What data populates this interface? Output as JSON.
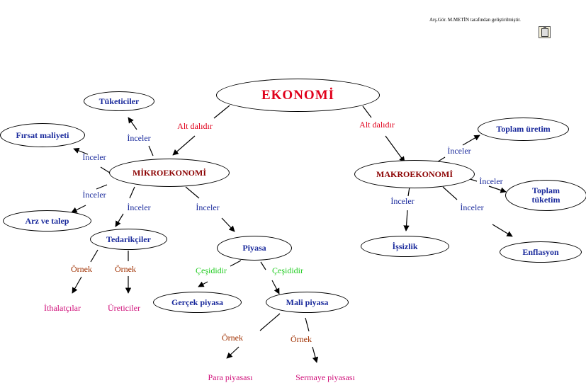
{
  "credit": "Arş.Gör. M.METİN tarafından geliştirilmiştir.",
  "colors": {
    "node_text": "#1a2a9c",
    "root_text": "#e0001b",
    "main_text": "#8b0000",
    "alt_dalidir": "#e0001b",
    "inceler": "#1a2a9c",
    "cesididir": "#22cc22",
    "ornek": "#a03000",
    "leaf": "#d0107a"
  },
  "nodes": {
    "ekonomi": "EKONOMİ",
    "mikro": "MİKROEKONOMİ",
    "makro": "MAKROEKONOMİ",
    "tuketiciler": "Tüketiciler",
    "firsat": "Fırsat maliyeti",
    "arz": "Arz ve talep",
    "tedarikciler": "Tedarikçiler",
    "piyasa": "Piyasa",
    "gercek": "Gerçek piyasa",
    "mali": "Mali piyasa",
    "toplam_uretim": "Toplam üretim",
    "toplam_tuketim": "Toplam tüketim",
    "issizlik": "İşsizlik",
    "enflasyon": "Enflasyon"
  },
  "leaves": {
    "ithalatcilar": "İthalatçılar",
    "ureticiler": "Üreticiler",
    "para": "Para piyasası",
    "sermaye": "Sermaye piyasası"
  },
  "labels": {
    "alt_dalidir": "Alt dalıdır",
    "inceler": "İnceler",
    "cesididir": "Çeşididir",
    "ornek": "Örnek"
  }
}
